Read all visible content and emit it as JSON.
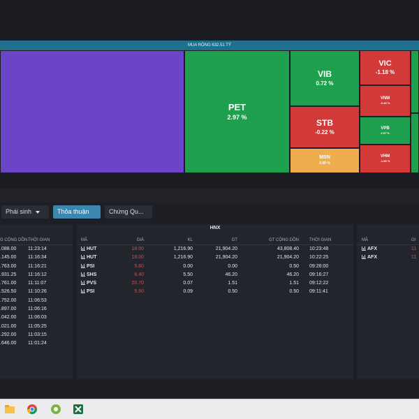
{
  "treemap": {
    "header": "MUA RÒNG 632.51 TỶ",
    "tiles": [
      {
        "symbol": "",
        "change": "",
        "color": "#6b45c8"
      },
      {
        "symbol": "PET",
        "change": "2.97 %",
        "color": "#1fa04e"
      },
      {
        "symbol": "VIB",
        "change": "0.72 %",
        "color": "#1fa04e"
      },
      {
        "symbol": "STB",
        "change": "-0.22 %",
        "color": "#d23a3a"
      },
      {
        "symbol": "MSN",
        "change": "0.00 %",
        "color": "#f0ad4e"
      },
      {
        "symbol": "VIC",
        "change": "-1.18 %",
        "color": "#d23a3a"
      },
      {
        "symbol": "VNM",
        "change": "-0.40 %",
        "color": "#d23a3a"
      },
      {
        "symbol": "VPB",
        "change": "2.97 %",
        "color": "#1fa04e"
      },
      {
        "symbol": "VHM",
        "change": "-1.83 %",
        "color": "#d23a3a"
      },
      {
        "symbol": "",
        "change": "",
        "color": "#1fa04e"
      },
      {
        "symbol": "",
        "change": "",
        "color": "#1fa04e"
      }
    ]
  },
  "filters": {
    "derivatives": "Phái sinh",
    "negotiated": "Thỏa thuận",
    "securities": "Chứng Qu..."
  },
  "left_panel": {
    "headers": {
      "cumulative": "G CỘNG DỒN",
      "time": "THỜI GIAN"
    },
    "rows": [
      {
        "cumulative": ".088.00",
        "time": "11:23:14"
      },
      {
        "cumulative": ".145.00",
        "time": "11:16:34"
      },
      {
        "cumulative": ".763.00",
        "time": "11:16:21"
      },
      {
        "cumulative": ".931.25",
        "time": "11:16:12"
      },
      {
        "cumulative": ".761.00",
        "time": "11:11:07"
      },
      {
        "cumulative": ".526.50",
        "time": "11:10:26"
      },
      {
        "cumulative": ".752.00",
        "time": "11:06:53"
      },
      {
        "cumulative": ".897.00",
        "time": "11:06:16"
      },
      {
        "cumulative": ".042.00",
        "time": "11:06:03"
      },
      {
        "cumulative": ".021.00",
        "time": "11:05:25"
      },
      {
        "cumulative": ".292.00",
        "time": "11:03:15"
      },
      {
        "cumulative": ".646.00",
        "time": "11:01:24"
      }
    ]
  },
  "hnx_panel": {
    "title": "HNX",
    "headers": {
      "symbol": "MÃ",
      "price": "GIÁ",
      "volume": "KL",
      "value": "GT",
      "cumulative": "GT CỘNG DỒN",
      "time": "THỜI GIAN"
    },
    "rows": [
      {
        "symbol": "HUT",
        "price": "18.00",
        "volume": "1,216.90",
        "value": "21,904.20",
        "cumulative": "43,808.40",
        "time": "10:23:48"
      },
      {
        "symbol": "HUT",
        "price": "18.00",
        "volume": "1,216.90",
        "value": "21,904.20",
        "cumulative": "21,904.20",
        "time": "10:22:25"
      },
      {
        "symbol": "PSI",
        "price": "5.60",
        "volume": "0.00",
        "value": "0.00",
        "cumulative": "0.50",
        "time": "09:26:00"
      },
      {
        "symbol": "SHS",
        "price": "8.40",
        "volume": "5.50",
        "value": "46.20",
        "cumulative": "46.20",
        "time": "09:16:27"
      },
      {
        "symbol": "PVS",
        "price": "20.70",
        "volume": "0.07",
        "value": "1.51",
        "cumulative": "1.51",
        "time": "09:12:22"
      },
      {
        "symbol": "PSI",
        "price": "5.60",
        "volume": "0.09",
        "value": "0.50",
        "cumulative": "0.50",
        "time": "09:11:41"
      }
    ]
  },
  "right_panel": {
    "headers": {
      "symbol": "MÃ",
      "price": "GI"
    },
    "rows": [
      {
        "symbol": "AFX",
        "price": "11"
      },
      {
        "symbol": "AFX",
        "price": "11"
      }
    ]
  }
}
